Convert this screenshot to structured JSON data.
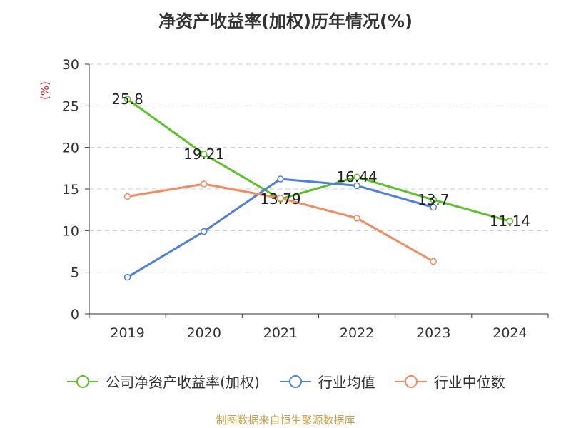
{
  "chart_data": {
    "type": "line",
    "title": "净资产收益率(加权)历年情况(%)",
    "ylabel": "(%)",
    "xlabel": "",
    "categories": [
      "2019",
      "2020",
      "2021",
      "2022",
      "2023",
      "2024"
    ],
    "ylim": [
      0,
      30
    ],
    "yticks": [
      0,
      5,
      10,
      15,
      20,
      25,
      30
    ],
    "grid": true,
    "legend_position": "bottom",
    "series": [
      {
        "name": "公司净资产收益率(加权)",
        "color": "#5bc229",
        "values": [
          25.8,
          19.21,
          13.79,
          16.44,
          13.7,
          11.14
        ],
        "labels": [
          "25.8",
          "19.21",
          "13.79",
          "16.44",
          "13.7",
          "11.14"
        ],
        "show_labels": true
      },
      {
        "name": "行业均值",
        "color": "#4f7fdb",
        "values": [
          4.4,
          9.9,
          16.2,
          15.4,
          12.8,
          null
        ],
        "show_labels": false
      },
      {
        "name": "行业中位数",
        "color": "#f5895f",
        "values": [
          14.1,
          15.6,
          13.9,
          11.5,
          6.3,
          null
        ],
        "show_labels": false
      }
    ]
  },
  "source": "制图数据来自恒生聚源数据库"
}
